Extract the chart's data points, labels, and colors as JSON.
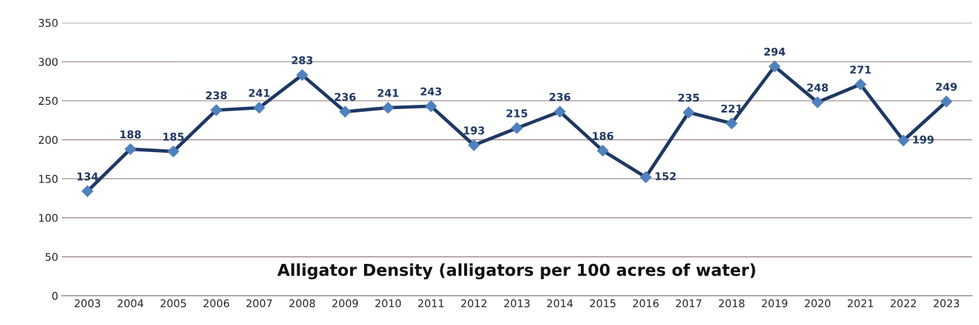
{
  "chart_data": {
    "type": "line",
    "title": "Alligator Density (alligators per 100 acres of water)",
    "categories": [
      "2003",
      "2004",
      "2005",
      "2006",
      "2007",
      "2008",
      "2009",
      "2010",
      "2011",
      "2012",
      "2013",
      "2014",
      "2015",
      "2016",
      "2017",
      "2018",
      "2019",
      "2020",
      "2021",
      "2022",
      "2023"
    ],
    "series": [
      {
        "color": "#1f3864",
        "values": [
          134,
          188,
          185,
          238,
          241,
          283,
          236,
          241,
          243,
          193,
          215,
          236,
          186,
          152,
          235,
          221,
          294,
          248,
          271,
          199,
          249
        ]
      }
    ],
    "ylim": [
      0,
      350
    ],
    "yticks": [
      0,
      50,
      100,
      150,
      200,
      250,
      300,
      350
    ],
    "grid": "y",
    "marker": "diamond",
    "line_style": "solid",
    "data_labels": true
  }
}
